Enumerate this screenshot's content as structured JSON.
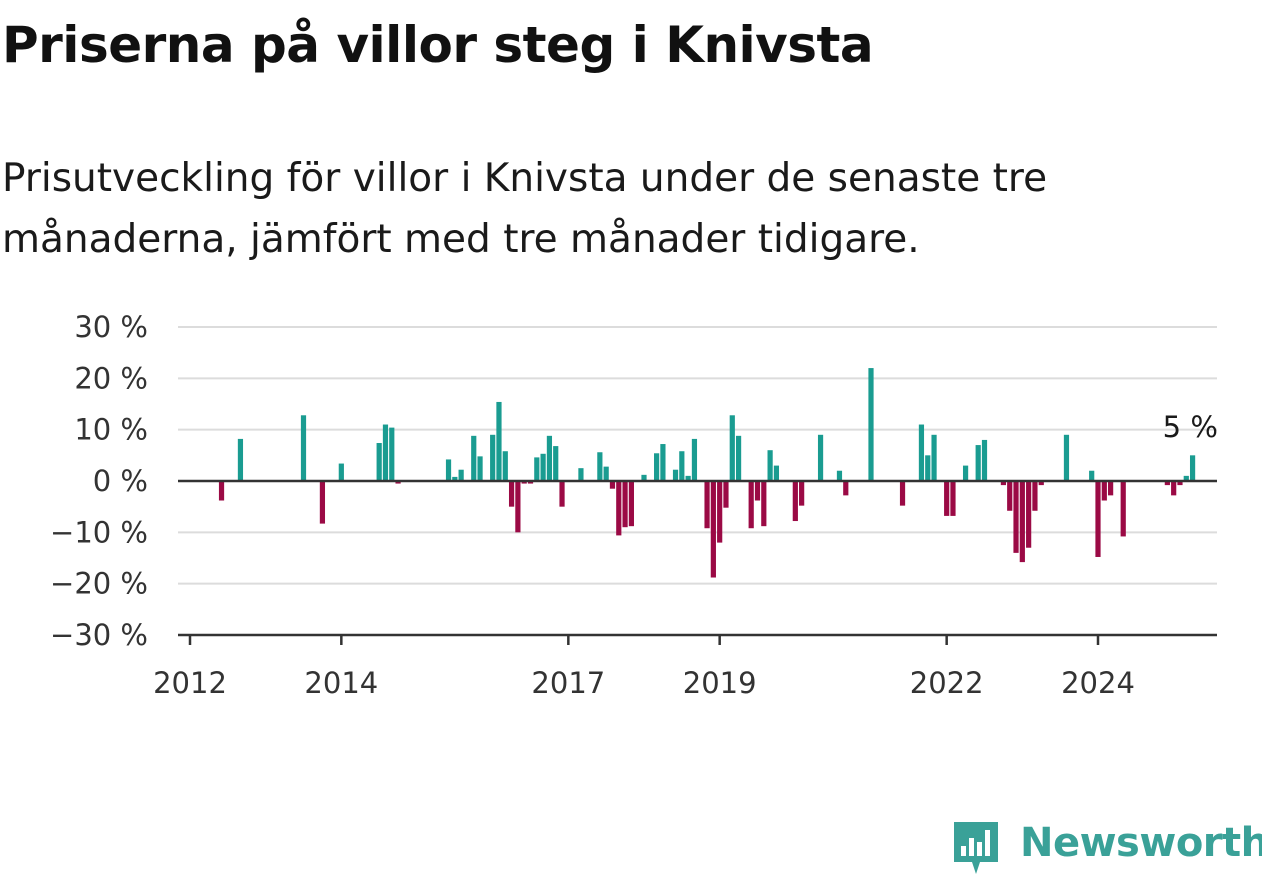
{
  "title": "Priserna på villor steg i Knivsta",
  "subtitle": "Prisutveckling för villor i Knivsta under de senaste tre månaderna, jämfört med tre månader tidigare.",
  "logo": {
    "text": "Newsworthy",
    "icon": "newsworthy-chart-bubble-icon"
  },
  "colors": {
    "positive": "#1a9c91",
    "negative": "#9b0a45",
    "grid": "#dcdcdc",
    "axis": "#333333"
  },
  "chart_data": {
    "type": "bar",
    "title": "Priserna på villor steg i Knivsta",
    "ylim": [
      -30,
      30
    ],
    "y_ticks": [
      30,
      20,
      10,
      0,
      -10,
      -20,
      -30
    ],
    "y_tick_labels": [
      "30 %",
      "20 %",
      "10 %",
      "0 %",
      "−10 %",
      "−20 %",
      "−30 %"
    ],
    "x_range": [
      "2012-01",
      "2025-12"
    ],
    "x_ticks": [
      {
        "date": "2012-01",
        "label": "2012"
      },
      {
        "date": "2014-01",
        "label": "2014"
      },
      {
        "date": "2017-01",
        "label": "2017"
      },
      {
        "date": "2019-01",
        "label": "2019"
      },
      {
        "date": "2022-01",
        "label": "2022"
      },
      {
        "date": "2024-01",
        "label": "2024"
      }
    ],
    "grid": true,
    "annotation": {
      "date": "2025-03",
      "label": "5 %"
    },
    "series": [
      {
        "data": [
          [
            "2012-06",
            -3.8
          ],
          [
            "2012-09",
            8.2
          ],
          [
            "2013-07",
            12.8
          ],
          [
            "2013-10",
            -8.3
          ],
          [
            "2014-01",
            3.4
          ],
          [
            "2014-07",
            7.4
          ],
          [
            "2014-08",
            11.0
          ],
          [
            "2014-09",
            10.4
          ],
          [
            "2014-10",
            -0.5
          ],
          [
            "2015-06",
            4.2
          ],
          [
            "2015-07",
            0.8
          ],
          [
            "2015-08",
            2.2
          ],
          [
            "2015-10",
            8.8
          ],
          [
            "2015-11",
            4.8
          ],
          [
            "2016-01",
            9.0
          ],
          [
            "2016-02",
            15.4
          ],
          [
            "2016-03",
            5.8
          ],
          [
            "2016-04",
            -5.0
          ],
          [
            "2016-05",
            -10.0
          ],
          [
            "2016-06",
            -0.5
          ],
          [
            "2016-07",
            -0.5
          ],
          [
            "2016-08",
            4.6
          ],
          [
            "2016-09",
            5.3
          ],
          [
            "2016-10",
            8.8
          ],
          [
            "2016-11",
            6.8
          ],
          [
            "2016-12",
            -5.0
          ],
          [
            "2017-03",
            2.5
          ],
          [
            "2017-06",
            5.6
          ],
          [
            "2017-07",
            2.8
          ],
          [
            "2017-08",
            -1.5
          ],
          [
            "2017-09",
            -10.6
          ],
          [
            "2017-10",
            -9.0
          ],
          [
            "2017-11",
            -8.8
          ],
          [
            "2018-01",
            1.2
          ],
          [
            "2018-03",
            5.4
          ],
          [
            "2018-04",
            7.2
          ],
          [
            "2018-06",
            2.2
          ],
          [
            "2018-07",
            5.8
          ],
          [
            "2018-08",
            1.0
          ],
          [
            "2018-09",
            8.2
          ],
          [
            "2018-11",
            -9.2
          ],
          [
            "2018-12",
            -18.8
          ],
          [
            "2019-01",
            -12.0
          ],
          [
            "2019-02",
            -5.2
          ],
          [
            "2019-03",
            12.8
          ],
          [
            "2019-04",
            8.8
          ],
          [
            "2019-06",
            -9.2
          ],
          [
            "2019-07",
            -3.8
          ],
          [
            "2019-08",
            -8.8
          ],
          [
            "2019-09",
            6.0
          ],
          [
            "2019-10",
            3.0
          ],
          [
            "2020-01",
            -7.8
          ],
          [
            "2020-02",
            -4.8
          ],
          [
            "2020-05",
            9.0
          ],
          [
            "2020-08",
            2.0
          ],
          [
            "2020-09",
            -2.8
          ],
          [
            "2021-01",
            22.0
          ],
          [
            "2021-06",
            -4.8
          ],
          [
            "2021-09",
            11.0
          ],
          [
            "2021-10",
            5.0
          ],
          [
            "2021-11",
            9.0
          ],
          [
            "2022-01",
            -6.8
          ],
          [
            "2022-02",
            -6.8
          ],
          [
            "2022-04",
            3.0
          ],
          [
            "2022-06",
            7.0
          ],
          [
            "2022-07",
            8.0
          ],
          [
            "2022-10",
            -0.8
          ],
          [
            "2022-11",
            -5.8
          ],
          [
            "2022-12",
            -14.0
          ],
          [
            "2023-01",
            -15.8
          ],
          [
            "2023-02",
            -13.0
          ],
          [
            "2023-03",
            -5.8
          ],
          [
            "2023-04",
            -0.8
          ],
          [
            "2023-08",
            9.0
          ],
          [
            "2023-12",
            2.0
          ],
          [
            "2024-01",
            -14.8
          ],
          [
            "2024-02",
            -3.8
          ],
          [
            "2024-03",
            -2.8
          ],
          [
            "2024-05",
            -10.8
          ],
          [
            "2024-12",
            -0.8
          ],
          [
            "2025-01",
            -2.8
          ],
          [
            "2025-02",
            -0.8
          ],
          [
            "2025-03",
            1.0
          ],
          [
            "2025-04",
            5.0
          ]
        ]
      }
    ]
  }
}
